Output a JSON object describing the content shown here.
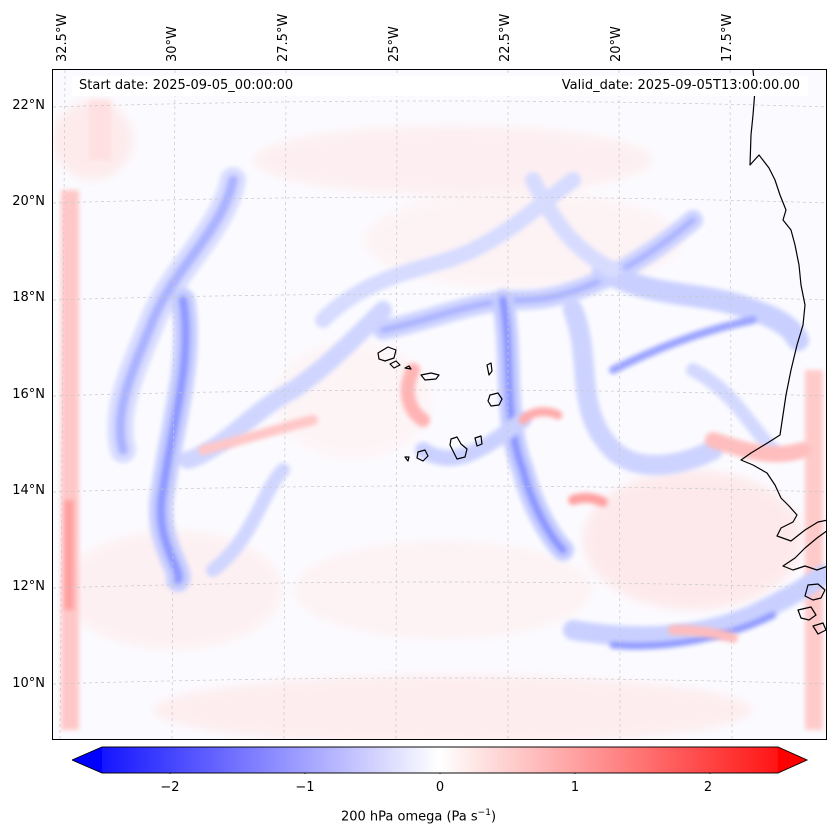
{
  "header": {
    "start_date": "Start date: 2025-09-05_00:00:00",
    "valid_date": "Valid_date: 2025-09-05T13:00:00.00"
  },
  "longitude_labels": [
    "32.5°W",
    "30°W",
    "27.5°W",
    "25°W",
    "22.5°W",
    "20°W",
    "17.5°W"
  ],
  "latitude_labels": [
    "22°N",
    "20°N",
    "18°N",
    "16°N",
    "14°N",
    "12°N",
    "10°N"
  ],
  "colorbar": {
    "ticks": [
      "−2",
      "−1",
      "0",
      "1",
      "2"
    ],
    "tick_values": [
      -2,
      -1,
      0,
      1,
      2
    ],
    "range": [
      -2.5,
      2.5
    ],
    "title_prefix": "200 hPa omega (Pa s",
    "title_exponent": "−1",
    "title_suffix": ")",
    "min_color": "#0000ff",
    "mid_color": "#ffffff",
    "max_color": "#ff0000"
  },
  "colors": {
    "coastline": "#000000",
    "gridline": "#c8c8c8"
  }
}
